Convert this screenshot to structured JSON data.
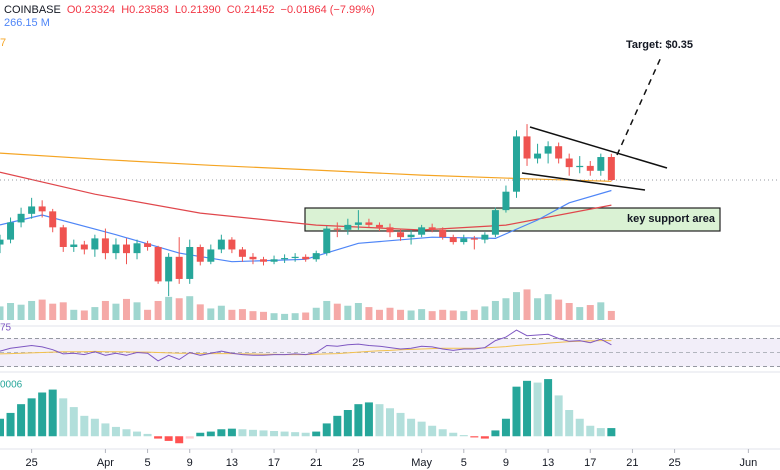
{
  "chart_data": {
    "type": "candlestick",
    "header": [
      "COINBASE",
      "O0.23324",
      "H0.23583",
      "L0.21390",
      "C0.21452",
      "−0.01864 (−7.99%)"
    ],
    "volume_label": "266.15 M",
    "ma_label": "7",
    "rsi_label": "75",
    "macd_label": "0006",
    "annotations": {
      "target": "Target: $0.35",
      "support": "key support area"
    },
    "x": [
      "03-22",
      "03-23",
      "03-24",
      "03-25",
      "03-26",
      "03-27",
      "03-28",
      "03-29",
      "03-30",
      "03-31",
      "04-01",
      "04-02",
      "04-03",
      "04-04",
      "04-05",
      "04-06",
      "04-07",
      "04-08",
      "04-09",
      "04-10",
      "04-11",
      "04-12",
      "04-13",
      "04-14",
      "04-15",
      "04-16",
      "04-17",
      "04-18",
      "04-19",
      "04-20",
      "04-21",
      "04-22",
      "04-23",
      "04-24",
      "04-25",
      "04-26",
      "04-27",
      "04-28",
      "04-29",
      "04-30",
      "05-01",
      "05-02",
      "05-03",
      "05-04",
      "05-05",
      "05-06",
      "05-07",
      "05-08",
      "05-09",
      "05-10",
      "05-11",
      "05-12",
      "05-13",
      "05-14",
      "05-15",
      "05-16",
      "05-17",
      "05-18",
      "05-19"
    ],
    "open": [
      0.162,
      0.166,
      0.18,
      0.187,
      0.193,
      0.189,
      0.176,
      0.16,
      0.162,
      0.158,
      0.167,
      0.155,
      0.162,
      0.155,
      0.163,
      0.16,
      0.132,
      0.152,
      0.134,
      0.16,
      0.148,
      0.158,
      0.166,
      0.158,
      0.152,
      0.15,
      0.148,
      0.15,
      0.151,
      0.152,
      0.15,
      0.155,
      0.175,
      0.174,
      0.178,
      0.18,
      0.178,
      0.176,
      0.172,
      0.168,
      0.17,
      0.176,
      0.174,
      0.168,
      0.164,
      0.167,
      0.166,
      0.17,
      0.19,
      0.205,
      0.25,
      0.232,
      0.236,
      0.242,
      0.232,
      0.225,
      0.226,
      0.222,
      0.23324
    ],
    "high": [
      0.17,
      0.184,
      0.192,
      0.2,
      0.198,
      0.191,
      0.178,
      0.166,
      0.165,
      0.17,
      0.175,
      0.167,
      0.167,
      0.166,
      0.165,
      0.161,
      0.155,
      0.168,
      0.166,
      0.162,
      0.162,
      0.17,
      0.168,
      0.16,
      0.155,
      0.152,
      0.153,
      0.154,
      0.155,
      0.154,
      0.157,
      0.177,
      0.18,
      0.183,
      0.19,
      0.183,
      0.18,
      0.179,
      0.175,
      0.174,
      0.178,
      0.179,
      0.176,
      0.17,
      0.17,
      0.169,
      0.172,
      0.192,
      0.21,
      0.255,
      0.26,
      0.244,
      0.246,
      0.245,
      0.236,
      0.234,
      0.23,
      0.236,
      0.23583
    ],
    "low": [
      0.155,
      0.163,
      0.176,
      0.183,
      0.184,
      0.172,
      0.156,
      0.156,
      0.154,
      0.152,
      0.15,
      0.15,
      0.146,
      0.15,
      0.157,
      0.13,
      0.12,
      0.13,
      0.13,
      0.145,
      0.146,
      0.155,
      0.155,
      0.148,
      0.146,
      0.145,
      0.146,
      0.147,
      0.148,
      0.148,
      0.148,
      0.153,
      0.168,
      0.17,
      0.174,
      0.176,
      0.173,
      0.168,
      0.165,
      0.162,
      0.168,
      0.172,
      0.166,
      0.162,
      0.162,
      0.158,
      0.163,
      0.168,
      0.188,
      0.2,
      0.226,
      0.228,
      0.228,
      0.228,
      0.218,
      0.22,
      0.218,
      0.218,
      0.2139
    ],
    "close": [
      0.166,
      0.18,
      0.187,
      0.193,
      0.189,
      0.176,
      0.16,
      0.162,
      0.158,
      0.167,
      0.155,
      0.162,
      0.155,
      0.163,
      0.16,
      0.132,
      0.152,
      0.134,
      0.16,
      0.148,
      0.158,
      0.166,
      0.158,
      0.152,
      0.15,
      0.148,
      0.15,
      0.151,
      0.152,
      0.15,
      0.155,
      0.175,
      0.174,
      0.178,
      0.18,
      0.178,
      0.176,
      0.172,
      0.168,
      0.17,
      0.176,
      0.174,
      0.168,
      0.164,
      0.167,
      0.166,
      0.17,
      0.19,
      0.205,
      0.25,
      0.232,
      0.236,
      0.242,
      0.232,
      0.225,
      0.226,
      0.222,
      0.2332,
      0.21452
    ],
    "up_color": "#26a69a",
    "down_color": "#ef5350",
    "xlim": [
      "03-22",
      "06-04"
    ],
    "xticks": [
      {
        "value": "03-25",
        "label": "25"
      },
      {
        "value": "04-01",
        "label": "Apr"
      },
      {
        "value": "04-05",
        "label": "5"
      },
      {
        "value": "04-09",
        "label": "9"
      },
      {
        "value": "04-13",
        "label": "13"
      },
      {
        "value": "04-17",
        "label": "17"
      },
      {
        "value": "04-21",
        "label": "21"
      },
      {
        "value": "04-25",
        "label": "25"
      },
      {
        "value": "05-01",
        "label": "May"
      },
      {
        "value": "05-05",
        "label": "5"
      },
      {
        "value": "05-09",
        "label": "9"
      },
      {
        "value": "05-13",
        "label": "13"
      },
      {
        "value": "05-17",
        "label": "17"
      },
      {
        "value": "05-21",
        "label": "21"
      },
      {
        "value": "05-25",
        "label": "25"
      },
      {
        "value": "06-01",
        "label": "Jun"
      }
    ],
    "ylim": [
      0.125,
      0.361
    ],
    "moving_averages": [
      {
        "color": "#f5a524",
        "x": [
          "03-22",
          "04-01",
          "04-11",
          "04-21",
          "05-01",
          "05-11",
          "05-19"
        ],
        "values": [
          0.2364,
          0.231,
          0.2265,
          0.2226,
          0.2185,
          0.2155,
          0.2135
        ]
      },
      {
        "color": "#e0474c",
        "x": [
          "03-22",
          "03-31",
          "04-10",
          "04-21",
          "05-01",
          "05-09",
          "05-19"
        ],
        "values": [
          0.2209,
          0.203,
          0.1876,
          0.1778,
          0.1738,
          0.1778,
          0.1941
        ]
      },
      {
        "color": "#4f86f7",
        "x": [
          "03-22",
          "03-26",
          "04-02",
          "04-08",
          "04-13",
          "04-20",
          "04-25",
          "05-02",
          "05-08",
          "05-12",
          "05-15",
          "05-19"
        ],
        "values": [
          0.178,
          0.186,
          0.17,
          0.155,
          0.148,
          0.15,
          0.163,
          0.168,
          0.167,
          0.182,
          0.196,
          0.206
        ]
      }
    ],
    "volume": {
      "ylim": [
        0,
        1000
      ],
      "up_color": "#9fd6cf",
      "down_color": "#f5a9a7",
      "values": [
        400,
        500,
        450,
        560,
        600,
        480,
        520,
        300,
        280,
        380,
        560,
        480,
        620,
        520,
        300,
        560,
        680,
        640,
        700,
        460,
        340,
        420,
        300,
        320,
        260,
        240,
        200,
        180,
        200,
        220,
        360,
        560,
        480,
        420,
        500,
        380,
        300,
        360,
        300,
        280,
        320,
        260,
        300,
        280,
        260,
        300,
        400,
        560,
        640,
        820,
        900,
        640,
        760,
        600,
        500,
        380,
        440,
        520,
        266.15
      ]
    },
    "rsi": {
      "ylim": [
        25,
        85
      ],
      "color": "#7e57c2",
      "ma_color": "#f2c14e",
      "values": [
        52,
        56,
        58,
        60,
        58,
        54,
        48,
        49,
        47,
        51,
        46,
        49,
        46,
        50,
        49,
        38,
        46,
        40,
        50,
        46,
        49,
        52,
        49,
        47,
        46,
        46,
        47,
        47,
        48,
        47,
        50,
        60,
        59,
        61,
        62,
        60,
        59,
        57,
        55,
        56,
        59,
        58,
        55,
        53,
        55,
        55,
        57,
        67,
        72,
        82,
        74,
        75,
        76,
        70,
        66,
        67,
        64,
        69,
        61
      ],
      "ma_values": [
        48,
        48.5,
        49,
        49.5,
        50,
        50.5,
        51,
        51,
        51,
        51.5,
        51,
        51,
        51,
        50.5,
        50.5,
        50,
        49.5,
        49,
        49,
        48.5,
        48.5,
        48.5,
        48.5,
        48,
        48,
        47.5,
        47.5,
        47,
        47,
        47,
        47.5,
        48,
        48.5,
        49.5,
        50.5,
        51.5,
        52.5,
        53,
        54,
        54.5,
        55,
        55.5,
        56,
        56,
        56,
        56,
        56.5,
        57.5,
        58.5,
        60,
        61,
        62,
        63.5,
        64.5,
        65.5,
        66,
        66.5,
        67,
        67
      ]
    },
    "macd": {
      "ylim": [
        -0.0015,
        0.0105
      ],
      "colors": {
        "up_rising": "#26a69a",
        "up_falling": "#b2dfdb",
        "down_falling": "#ff5252",
        "down_rising": "#ffcdd2"
      },
      "histogram": [
        0.003,
        0.004,
        0.0055,
        0.0065,
        0.0075,
        0.008,
        0.0065,
        0.005,
        0.0035,
        0.003,
        0.0022,
        0.0016,
        0.0012,
        0.0008,
        0.0004,
        -0.0004,
        -0.0008,
        -0.0012,
        -0.0004,
        0.0006,
        0.0008,
        0.0012,
        0.0013,
        0.0012,
        0.0011,
        0.001,
        0.0009,
        0.0008,
        0.0007,
        0.0006,
        0.0008,
        0.0022,
        0.0035,
        0.0045,
        0.0055,
        0.0058,
        0.0055,
        0.0048,
        0.004,
        0.003,
        0.0025,
        0.0018,
        0.0012,
        0.0006,
        0.0002,
        -0.0002,
        -0.0004,
        0.001,
        0.003,
        0.0085,
        0.0095,
        0.0092,
        0.0098,
        0.007,
        0.0045,
        0.003,
        0.0018,
        0.0014,
        0.0014
      ]
    }
  }
}
